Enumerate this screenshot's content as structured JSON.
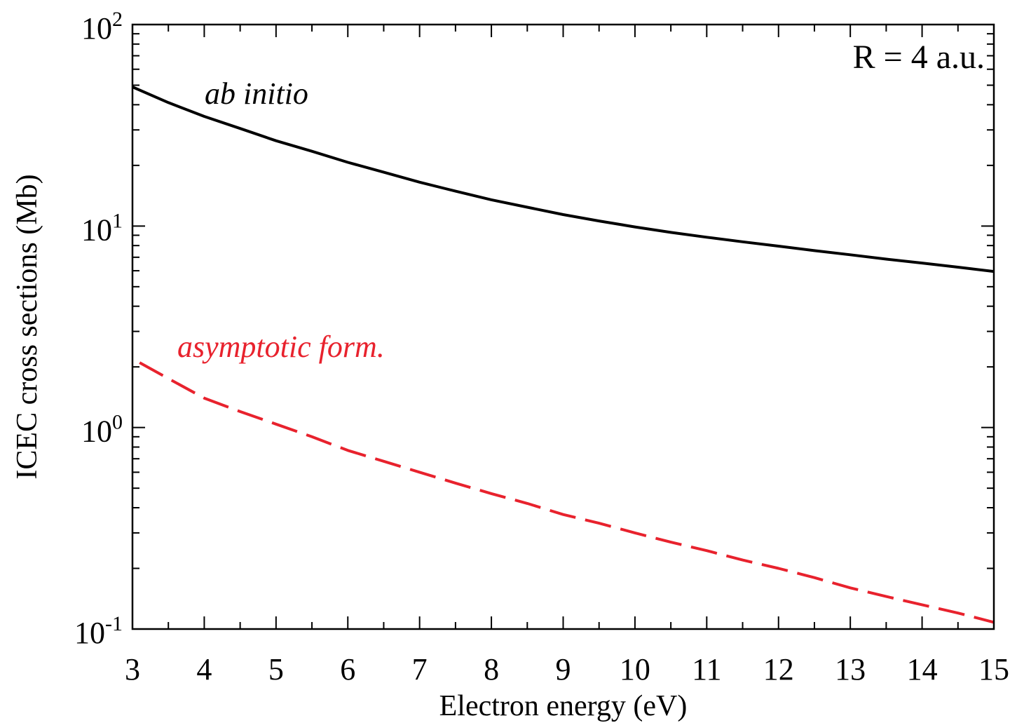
{
  "chart_data": {
    "type": "line",
    "xlabel": "Electron energy (eV)",
    "ylabel": "ICEC cross sections (Mb)",
    "y_scale": "log",
    "xlim": [
      3,
      15
    ],
    "ylim": [
      0.1,
      100
    ],
    "x_ticks": [
      "3",
      "4",
      "5",
      "6",
      "7",
      "8",
      "9",
      "10",
      "11",
      "12",
      "13",
      "14",
      "15"
    ],
    "y_ticks": [
      {
        "base": "10",
        "exp": "-1"
      },
      {
        "base": "10",
        "exp": "0"
      },
      {
        "base": "10",
        "exp": "1"
      },
      {
        "base": "10",
        "exp": "2"
      }
    ],
    "grid": false,
    "annotation_R": "R = 4 a.u.",
    "series": [
      {
        "name": "ab initio",
        "color": "#000000",
        "style": "solid",
        "x": [
          3,
          3.5,
          4,
          4.5,
          5,
          5.5,
          6,
          6.5,
          7,
          7.5,
          8,
          8.5,
          9,
          9.5,
          10,
          10.5,
          11,
          11.5,
          12,
          12.5,
          13,
          13.5,
          14,
          14.5,
          15
        ],
        "y": [
          49,
          41,
          35,
          30.5,
          26.5,
          23.5,
          20.7,
          18.5,
          16.5,
          14.9,
          13.5,
          12.4,
          11.4,
          10.6,
          9.9,
          9.3,
          8.8,
          8.35,
          7.95,
          7.55,
          7.2,
          6.85,
          6.55,
          6.25,
          5.95
        ]
      },
      {
        "name": "asymptotic form.",
        "color": "#e8222d",
        "style": "dashed",
        "x": [
          3.1,
          3.5,
          4,
          4.5,
          5,
          5.5,
          6,
          6.5,
          7,
          7.5,
          8,
          8.5,
          9,
          9.5,
          10,
          10.5,
          11,
          11.5,
          12,
          12.5,
          13,
          13.5,
          14,
          14.5,
          15
        ],
        "y": [
          2.1,
          1.75,
          1.4,
          1.2,
          1.04,
          0.9,
          0.77,
          0.68,
          0.6,
          0.53,
          0.47,
          0.42,
          0.37,
          0.335,
          0.3,
          0.27,
          0.245,
          0.22,
          0.2,
          0.18,
          0.16,
          0.145,
          0.132,
          0.12,
          0.108
        ]
      }
    ]
  }
}
